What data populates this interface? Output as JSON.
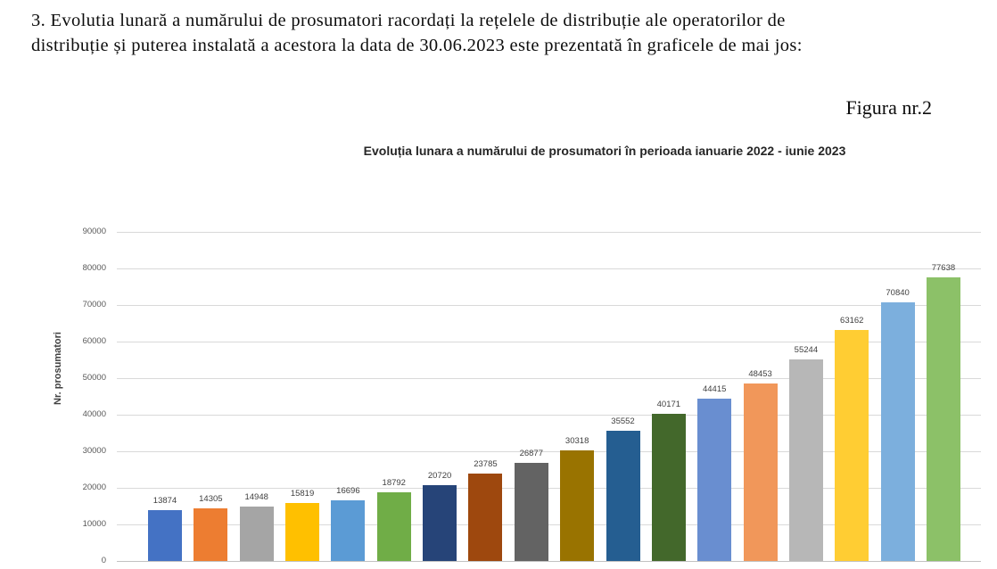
{
  "document": {
    "paragraph_lines": [
      "3. Evolutia lunară a numărului de prosumatori racordați la rețelele de distribuție ale operatorilor de",
      "distribuție și puterea instalată a acestora la data de 30.06.2023 este prezentată în graficele de mai jos:"
    ],
    "figure_label": "Figura nr.2"
  },
  "chart_data": {
    "type": "bar",
    "title": "Evoluția lunara a numărului de prosumatori în perioada ianuarie 2022 - iunie 2023",
    "xlabel": "",
    "ylabel": "Nr. prosumatori",
    "ylim": [
      0,
      90000
    ],
    "ytick_step": 10000,
    "ytick_labels": [
      "0",
      "10000",
      "20000",
      "30000",
      "40000",
      "50000",
      "60000",
      "70000",
      "80000",
      "90000"
    ],
    "grid": true,
    "legend": false,
    "x_axis_labels_visible": false,
    "values": [
      13874,
      14305,
      14948,
      15819,
      16696,
      18792,
      20720,
      23785,
      26877,
      30318,
      35552,
      40171,
      44415,
      48453,
      55244,
      63162,
      70840,
      77638
    ],
    "data_labels": [
      "13874",
      "14305",
      "14948",
      "15819",
      "16696",
      "18792",
      "20720",
      "23785",
      "26877",
      "30318",
      "35552",
      "40171",
      "44415",
      "48453",
      "55244",
      "63162",
      "70840",
      "77638"
    ],
    "bar_colors": [
      "#4472C4",
      "#ED7D31",
      "#A5A5A5",
      "#FFC000",
      "#5B9BD5",
      "#70AD47",
      "#264478",
      "#9E480E",
      "#636363",
      "#997300",
      "#255E91",
      "#43682B",
      "#698ED0",
      "#F1975A",
      "#B7B7B7",
      "#FFCD33",
      "#7CAFDD",
      "#8CC168"
    ],
    "gridline_color": "#D9D9D9",
    "axis_line_color": "#C2C2C2",
    "tick_label_color": "#595959",
    "data_label_color": "#404040"
  }
}
